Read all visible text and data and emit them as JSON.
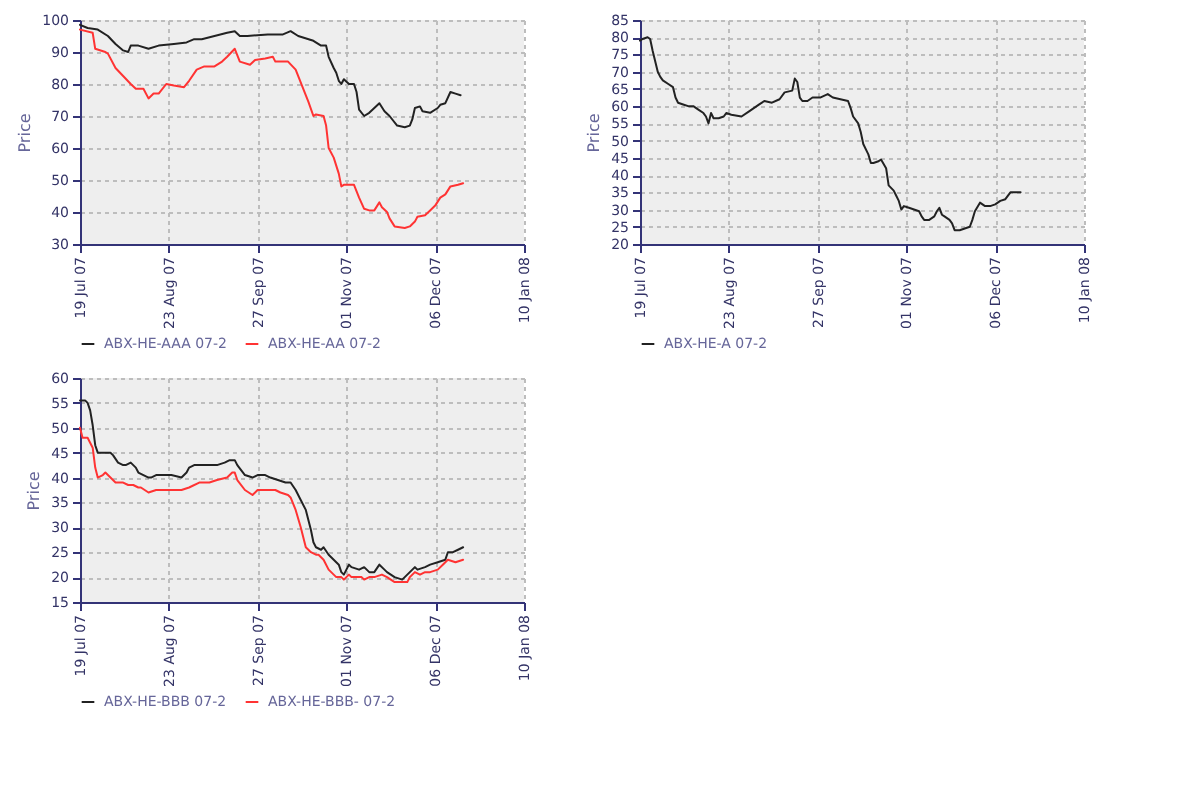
{
  "chart_data": [
    {
      "type": "line",
      "ylabel": "Price",
      "xlim": [
        "2007-07-19",
        "2008-01-10"
      ],
      "ylim": [
        30,
        100
      ],
      "yticks": [
        30,
        40,
        50,
        60,
        70,
        80,
        90,
        100
      ],
      "grid": true,
      "legend": "bottom",
      "line_style": "solid",
      "xticks": [
        {
          "value": "2007-07-19",
          "label": "19 Jul 07"
        },
        {
          "value": "2007-08-23",
          "label": "23 Aug 07"
        },
        {
          "value": "2007-09-27",
          "label": "27 Sep 07"
        },
        {
          "value": "2007-11-01",
          "label": "01 Nov 07"
        },
        {
          "value": "2007-12-06",
          "label": "06 Dec 07"
        },
        {
          "value": "2008-01-10",
          "label": "10 Jan 08"
        }
      ],
      "series": [
        {
          "name": "ABX-HE-AAA 07-2",
          "color": "#222222",
          "x": [
            "2007-07-19",
            "2007-07-22",
            "2007-07-26",
            "2007-07-30",
            "2007-08-02",
            "2007-08-05",
            "2007-08-07",
            "2007-08-08",
            "2007-08-11",
            "2007-08-15",
            "2007-08-19",
            "2007-08-25",
            "2007-08-30",
            "2007-09-02",
            "2007-09-05",
            "2007-09-10",
            "2007-09-15",
            "2007-09-18",
            "2007-09-20",
            "2007-09-23",
            "2007-10-01",
            "2007-10-07",
            "2007-10-10",
            "2007-10-13",
            "2007-10-19",
            "2007-10-22",
            "2007-10-24",
            "2007-10-25",
            "2007-10-27",
            "2007-10-28",
            "2007-10-29",
            "2007-10-30",
            "2007-10-31",
            "2007-11-02",
            "2007-11-04",
            "2007-11-05",
            "2007-11-06",
            "2007-11-08",
            "2007-11-10",
            "2007-11-12",
            "2007-11-14",
            "2007-11-16",
            "2007-11-18",
            "2007-11-21",
            "2007-11-24",
            "2007-11-26",
            "2007-11-27",
            "2007-11-28",
            "2007-11-30",
            "2007-12-01",
            "2007-12-04",
            "2007-12-07",
            "2007-12-08",
            "2007-12-10",
            "2007-12-12",
            "2007-12-14",
            "2007-12-16"
          ],
          "values": [
            98.5,
            97.5,
            97,
            95,
            92.5,
            90.5,
            90,
            92,
            92,
            91,
            92,
            92.5,
            93,
            94,
            94,
            95,
            96,
            96.5,
            95,
            95,
            95.5,
            95.5,
            96.5,
            95,
            93.5,
            92,
            92,
            88.5,
            85,
            83.5,
            81,
            80,
            81.5,
            80,
            80,
            77.5,
            72,
            70,
            71,
            72.5,
            74,
            71.5,
            70,
            67,
            66.5,
            67,
            69,
            72.5,
            73,
            71.5,
            71,
            72.5,
            73.5,
            74,
            77.5,
            77,
            76.5
          ]
        },
        {
          "name": "ABX-HE-AA 07-2",
          "color": "#ff3333",
          "x": [
            "2007-07-19",
            "2007-07-24",
            "2007-07-25",
            "2007-07-29",
            "2007-07-30",
            "2007-08-02",
            "2007-08-05",
            "2007-08-08",
            "2007-08-10",
            "2007-08-13",
            "2007-08-15",
            "2007-08-17",
            "2007-08-19",
            "2007-08-22",
            "2007-08-25",
            "2007-08-29",
            "2007-08-31",
            "2007-09-03",
            "2007-09-06",
            "2007-09-10",
            "2007-09-13",
            "2007-09-15",
            "2007-09-18",
            "2007-09-20",
            "2007-09-24",
            "2007-09-26",
            "2007-09-30",
            "2007-10-03",
            "2007-10-04",
            "2007-10-09",
            "2007-10-12",
            "2007-10-15",
            "2007-10-17",
            "2007-10-19",
            "2007-10-20",
            "2007-10-23",
            "2007-10-24",
            "2007-10-25",
            "2007-10-27",
            "2007-10-29",
            "2007-10-30",
            "2007-10-31",
            "2007-11-02",
            "2007-11-04",
            "2007-11-06",
            "2007-11-08",
            "2007-11-10",
            "2007-11-12",
            "2007-11-14",
            "2007-11-15",
            "2007-11-17",
            "2007-11-18",
            "2007-11-20",
            "2007-11-24",
            "2007-11-26",
            "2007-11-28",
            "2007-11-29",
            "2007-12-02",
            "2007-12-04",
            "2007-12-06",
            "2007-12-08",
            "2007-12-10",
            "2007-12-12",
            "2007-12-15",
            "2007-12-17"
          ],
          "values": [
            97,
            96,
            91,
            90,
            89.5,
            85,
            82.5,
            80,
            78.5,
            78.5,
            75.5,
            77,
            77,
            80,
            79.5,
            79,
            81,
            84.5,
            85.5,
            85.5,
            87,
            88.5,
            91,
            87,
            86,
            87.5,
            88,
            88.5,
            87,
            87,
            84.5,
            78.5,
            74.5,
            70,
            70.5,
            70,
            67,
            60,
            57,
            52,
            48,
            48.5,
            48.5,
            48.5,
            44.5,
            41,
            40.5,
            40.5,
            43,
            41.5,
            40,
            38,
            35.5,
            35,
            35.5,
            37,
            38.5,
            39,
            40.5,
            42,
            44.5,
            45.5,
            48,
            48.5,
            49
          ]
        }
      ]
    },
    {
      "type": "line",
      "ylabel": "Price",
      "xlim": [
        "2007-07-19",
        "2008-01-10"
      ],
      "ylim": [
        20,
        85
      ],
      "yticks": [
        20,
        25,
        30,
        35,
        40,
        45,
        50,
        55,
        60,
        65,
        70,
        75,
        80,
        85
      ],
      "grid": true,
      "legend": "bottom",
      "line_style": "solid",
      "xticks": [
        {
          "value": "2007-07-19",
          "label": "19 Jul 07"
        },
        {
          "value": "2007-08-23",
          "label": "23 Aug 07"
        },
        {
          "value": "2007-09-27",
          "label": "27 Sep 07"
        },
        {
          "value": "2007-11-01",
          "label": "01 Nov 07"
        },
        {
          "value": "2007-12-06",
          "label": "06 Dec 07"
        },
        {
          "value": "2008-01-10",
          "label": "10 Jan 08"
        }
      ],
      "series": [
        {
          "name": "ABX-HE-A 07-2",
          "color": "#222222",
          "x": [
            "2007-07-19",
            "2007-07-20",
            "2007-07-22",
            "2007-07-23",
            "2007-07-24",
            "2007-07-26",
            "2007-07-27",
            "2007-07-28",
            "2007-07-30",
            "2007-08-01",
            "2007-08-02",
            "2007-08-03",
            "2007-08-05",
            "2007-08-07",
            "2007-08-09",
            "2007-08-10",
            "2007-08-11",
            "2007-08-13",
            "2007-08-14",
            "2007-08-15",
            "2007-08-16",
            "2007-08-17",
            "2007-08-19",
            "2007-08-21",
            "2007-08-22",
            "2007-08-24",
            "2007-08-28",
            "2007-08-31",
            "2007-09-04",
            "2007-09-06",
            "2007-09-09",
            "2007-09-12",
            "2007-09-14",
            "2007-09-17",
            "2007-09-18",
            "2007-09-19",
            "2007-09-20",
            "2007-09-21",
            "2007-09-23",
            "2007-09-25",
            "2007-09-27",
            "2007-09-28",
            "2007-10-01",
            "2007-10-03",
            "2007-10-06",
            "2007-10-09",
            "2007-10-10",
            "2007-10-11",
            "2007-10-13",
            "2007-10-14",
            "2007-10-15",
            "2007-10-17",
            "2007-10-18",
            "2007-10-19",
            "2007-10-21",
            "2007-10-22",
            "2007-10-24",
            "2007-10-25",
            "2007-10-27",
            "2007-10-28",
            "2007-10-29",
            "2007-10-30",
            "2007-10-31",
            "2007-11-02",
            "2007-11-04",
            "2007-11-06",
            "2007-11-07",
            "2007-11-08",
            "2007-11-10",
            "2007-11-12",
            "2007-11-13",
            "2007-11-14",
            "2007-11-15",
            "2007-11-16",
            "2007-11-18",
            "2007-11-19",
            "2007-11-20",
            "2007-11-22",
            "2007-11-24",
            "2007-11-26",
            "2007-11-27",
            "2007-11-28",
            "2007-11-30",
            "2007-12-01",
            "2007-12-02",
            "2007-12-04",
            "2007-12-06",
            "2007-12-08",
            "2007-12-10",
            "2007-12-12",
            "2007-12-14",
            "2007-12-16"
          ],
          "values": [
            79,
            79.5,
            80,
            79.5,
            76,
            70,
            68.5,
            67.5,
            66.5,
            65.5,
            62.5,
            61,
            60.5,
            60,
            60,
            59.5,
            59,
            58,
            57,
            55,
            58,
            56.5,
            56.5,
            57,
            58,
            57.5,
            57,
            58.5,
            60.5,
            61.5,
            61,
            62,
            64,
            64.5,
            68,
            67,
            62.5,
            61.5,
            61.5,
            62.5,
            62.5,
            62.5,
            63.5,
            62.5,
            62,
            61.5,
            59.5,
            57,
            55,
            52.5,
            49,
            46,
            43.5,
            43.5,
            44,
            44.5,
            42,
            37,
            35.5,
            34,
            32.5,
            30,
            31,
            30.5,
            30,
            29.5,
            28,
            27,
            27,
            28,
            29.5,
            30.5,
            28.5,
            28,
            27,
            26,
            24,
            24,
            24.5,
            25,
            27,
            29.5,
            32,
            31.5,
            31,
            31,
            31.5,
            32.5,
            33,
            35,
            35,
            35
          ]
        }
      ]
    },
    {
      "type": "line",
      "ylabel": "Price",
      "xlim": [
        "2007-07-19",
        "2008-01-10"
      ],
      "ylim": [
        15,
        60
      ],
      "yticks": [
        15,
        20,
        25,
        30,
        35,
        40,
        45,
        50,
        55,
        60
      ],
      "grid": true,
      "legend": "bottom",
      "line_style": "solid",
      "xticks": [
        {
          "value": "2007-07-19",
          "label": "19 Jul 07"
        },
        {
          "value": "2007-08-23",
          "label": "23 Aug 07"
        },
        {
          "value": "2007-09-27",
          "label": "27 Sep 07"
        },
        {
          "value": "2007-11-01",
          "label": "01 Nov 07"
        },
        {
          "value": "2007-12-06",
          "label": "06 Dec 07"
        },
        {
          "value": "2008-01-10",
          "label": "10 Jan 08"
        }
      ],
      "series": [
        {
          "name": "ABX-HE-BBB 07-2",
          "color": "#222222",
          "x": [
            "2007-07-19",
            "2007-07-21",
            "2007-07-22",
            "2007-07-23",
            "2007-07-24",
            "2007-07-25",
            "2007-07-26",
            "2007-07-28",
            "2007-07-29",
            "2007-07-31",
            "2007-08-01",
            "2007-08-03",
            "2007-08-05",
            "2007-08-06",
            "2007-08-08",
            "2007-08-10",
            "2007-08-11",
            "2007-08-13",
            "2007-08-15",
            "2007-08-16",
            "2007-08-18",
            "2007-08-19",
            "2007-08-21",
            "2007-08-24",
            "2007-08-28",
            "2007-08-30",
            "2007-08-31",
            "2007-09-02",
            "2007-09-06",
            "2007-09-11",
            "2007-09-14",
            "2007-09-16",
            "2007-09-18",
            "2007-09-19",
            "2007-09-22",
            "2007-09-25",
            "2007-09-27",
            "2007-09-30",
            "2007-10-02",
            "2007-10-05",
            "2007-10-08",
            "2007-10-10",
            "2007-10-12",
            "2007-10-14",
            "2007-10-16",
            "2007-10-18",
            "2007-10-19",
            "2007-10-20",
            "2007-10-22",
            "2007-10-23",
            "2007-10-25",
            "2007-10-27",
            "2007-10-29",
            "2007-10-30",
            "2007-10-31",
            "2007-11-02",
            "2007-11-03",
            "2007-11-06",
            "2007-11-08",
            "2007-11-10",
            "2007-11-12",
            "2007-11-14",
            "2007-11-16",
            "2007-11-17",
            "2007-11-20",
            "2007-11-23",
            "2007-11-24",
            "2007-11-26",
            "2007-11-28",
            "2007-11-29",
            "2007-12-02",
            "2007-12-04",
            "2007-12-07",
            "2007-12-10",
            "2007-12-11",
            "2007-12-13",
            "2007-12-15",
            "2007-12-17"
          ],
          "values": [
            55.5,
            55.5,
            55,
            53.5,
            50.5,
            46.5,
            45,
            45,
            45,
            45,
            44.5,
            43,
            42.5,
            42.5,
            43,
            42,
            41,
            40.5,
            40,
            40,
            40.5,
            40.5,
            40.5,
            40.5,
            40,
            41,
            42,
            42.5,
            42.5,
            42.5,
            43,
            43.5,
            43.5,
            42.5,
            40.5,
            40,
            40.5,
            40.5,
            40,
            39.5,
            39,
            39,
            37.5,
            35.5,
            33.5,
            29.5,
            27,
            26,
            25.5,
            26,
            24.5,
            23.5,
            22.5,
            21,
            20.5,
            22.5,
            22,
            21.5,
            22,
            21,
            21,
            22.5,
            21.5,
            21,
            20,
            19.5,
            20,
            21,
            22,
            21.5,
            22,
            22.5,
            23,
            23.5,
            25,
            25,
            25.5,
            26
          ]
        },
        {
          "name": "ABX-HE-BBB- 07-2",
          "color": "#ff3333",
          "x": [
            "2007-07-19",
            "2007-07-20",
            "2007-07-22",
            "2007-07-24",
            "2007-07-25",
            "2007-07-26",
            "2007-07-28",
            "2007-07-29",
            "2007-07-31",
            "2007-08-02",
            "2007-08-05",
            "2007-08-07",
            "2007-08-09",
            "2007-08-11",
            "2007-08-12",
            "2007-08-15",
            "2007-08-18",
            "2007-08-20",
            "2007-08-24",
            "2007-08-28",
            "2007-08-31",
            "2007-09-04",
            "2007-09-08",
            "2007-09-11",
            "2007-09-15",
            "2007-09-17",
            "2007-09-18",
            "2007-09-19",
            "2007-09-22",
            "2007-09-25",
            "2007-09-27",
            "2007-10-01",
            "2007-10-04",
            "2007-10-06",
            "2007-10-09",
            "2007-10-10",
            "2007-10-12",
            "2007-10-14",
            "2007-10-16",
            "2007-10-18",
            "2007-10-20",
            "2007-10-21",
            "2007-10-23",
            "2007-10-25",
            "2007-10-27",
            "2007-10-28",
            "2007-10-30",
            "2007-10-31",
            "2007-11-02",
            "2007-11-03",
            "2007-11-05",
            "2007-11-07",
            "2007-11-08",
            "2007-11-10",
            "2007-11-12",
            "2007-11-15",
            "2007-11-17",
            "2007-11-20",
            "2007-11-23",
            "2007-11-25",
            "2007-11-26",
            "2007-11-28",
            "2007-11-30",
            "2007-12-02",
            "2007-12-04",
            "2007-12-07",
            "2007-12-09",
            "2007-12-11",
            "2007-12-14",
            "2007-12-17"
          ],
          "values": [
            50,
            48,
            48,
            46,
            42,
            40,
            40.5,
            41,
            40,
            39,
            39,
            38.5,
            38.5,
            38,
            38,
            37,
            37.5,
            37.5,
            37.5,
            37.5,
            38,
            39,
            39,
            39.5,
            40,
            41,
            41,
            39.5,
            37.5,
            36.5,
            37.5,
            37.5,
            37.5,
            37,
            36.5,
            36,
            33.5,
            30,
            26,
            25,
            24.5,
            24.5,
            23.5,
            21.5,
            20.5,
            20,
            20,
            19.5,
            20.5,
            20,
            20,
            20,
            19.5,
            20,
            20,
            20.5,
            20,
            19,
            19,
            19,
            20,
            21,
            20.5,
            21,
            21,
            21.5,
            22.5,
            23.5,
            23,
            23.5
          ]
        }
      ]
    }
  ]
}
